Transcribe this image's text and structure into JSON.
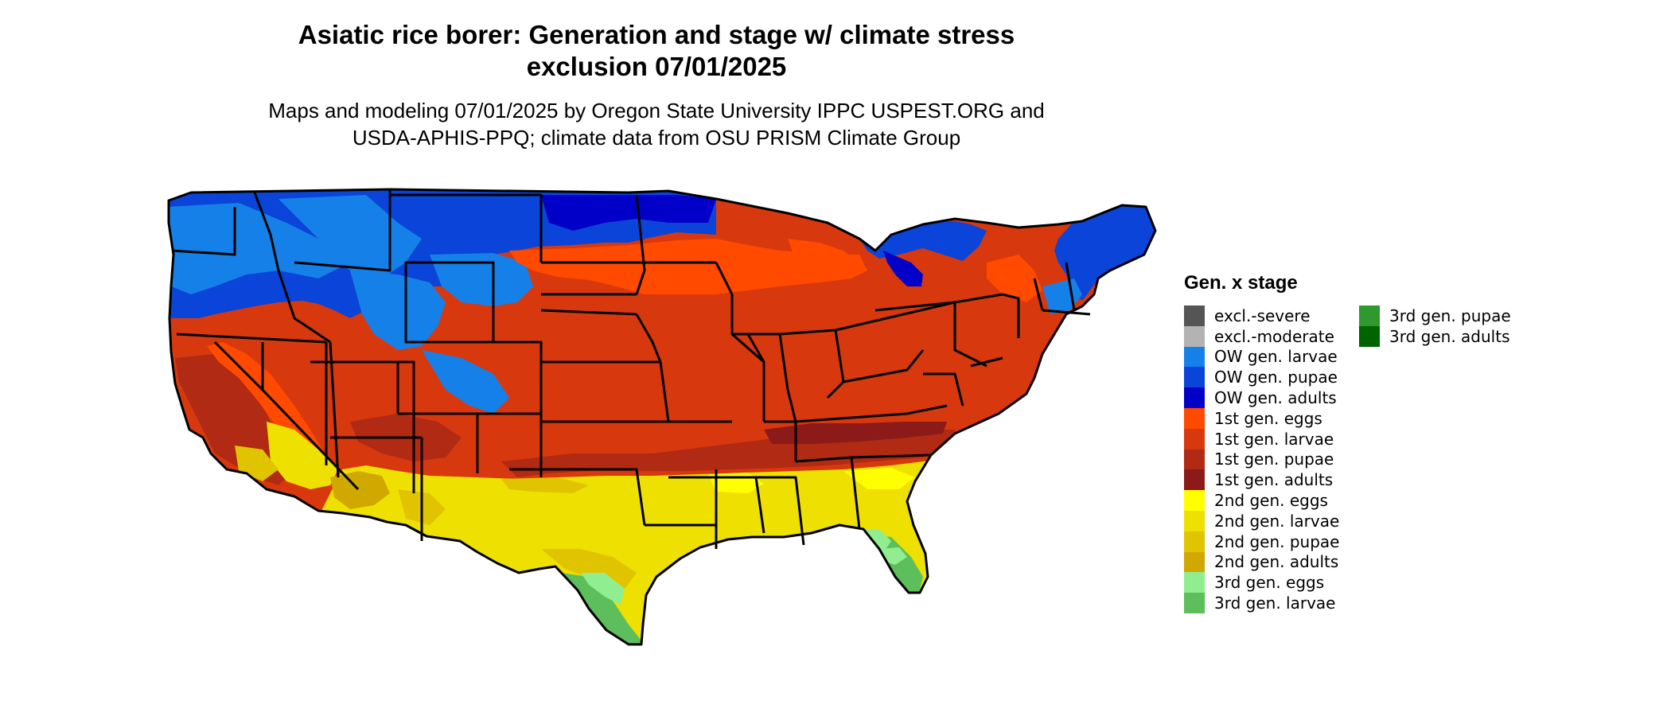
{
  "title": {
    "line1": "Asiatic rice borer: Generation and stage w/ climate stress",
    "line2": "exclusion 07/01/2025"
  },
  "subtitle": {
    "line1": "Maps and modeling 07/01/2025 by Oregon State University IPPC USPEST.ORG and",
    "line2": "USDA-APHIS-PPQ; climate data from OSU PRISM Climate Group"
  },
  "legend": {
    "title": "Gen. x stage",
    "items": [
      {
        "label": "excl.-severe",
        "color": "#555555"
      },
      {
        "label": "excl.-moderate",
        "color": "#b3b3b3"
      },
      {
        "label": "OW gen. larvae",
        "color": "#1580e8"
      },
      {
        "label": "OW gen. pupae",
        "color": "#0a44d8"
      },
      {
        "label": "OW gen. adults",
        "color": "#0000c8"
      },
      {
        "label": "1st gen. eggs",
        "color": "#ff4a00"
      },
      {
        "label": "1st gen. larvae",
        "color": "#d8380e"
      },
      {
        "label": "1st gen. pupae",
        "color": "#b02a14"
      },
      {
        "label": "1st gen. adults",
        "color": "#8c1a18"
      },
      {
        "label": "2nd gen. eggs",
        "color": "#ffff00"
      },
      {
        "label": "2nd gen. larvae",
        "color": "#eee000"
      },
      {
        "label": "2nd gen. pupae",
        "color": "#e0c400"
      },
      {
        "label": "2nd gen. adults",
        "color": "#d0a800"
      },
      {
        "label": "3rd gen. eggs",
        "color": "#90ee90"
      },
      {
        "label": "3rd gen. larvae",
        "color": "#5cbf5c"
      },
      {
        "label": "3rd gen. pupae",
        "color": "#2e9a2e"
      },
      {
        "label": "3rd gen. adults",
        "color": "#006400"
      }
    ]
  }
}
